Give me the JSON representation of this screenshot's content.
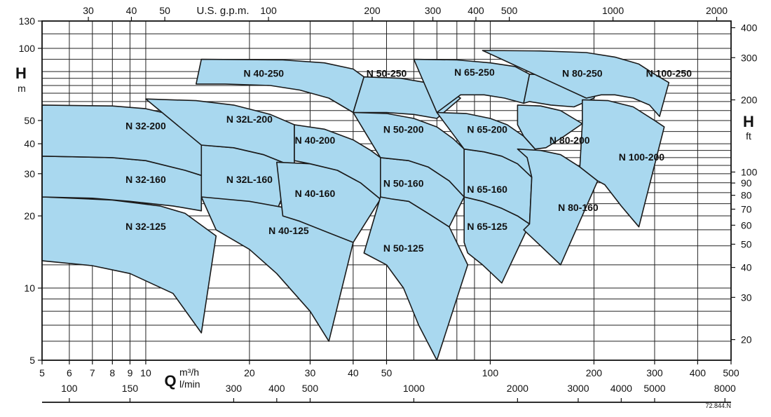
{
  "chart_data": {
    "type": "area",
    "title": "",
    "axes": {
      "x_primary": {
        "label": "Q",
        "unit": "m³/h",
        "scale": "log",
        "range": [
          5,
          500
        ],
        "ticks": [
          5,
          6,
          7,
          8,
          9,
          10,
          20,
          30,
          40,
          50,
          100,
          200,
          300,
          400,
          500
        ]
      },
      "x_secondary_lmin": {
        "unit": "l/min",
        "ticks": [
          100,
          150,
          300,
          400,
          500,
          1000,
          2000,
          3000,
          4000,
          5000,
          8000
        ]
      },
      "x_top_usgpm": {
        "unit": "U.S. g.p.m.",
        "ticks": [
          30,
          40,
          50,
          100,
          200,
          300,
          400,
          500,
          1000,
          2000
        ]
      },
      "y_primary": {
        "label": "H",
        "unit": "m",
        "scale": "log",
        "range": [
          5,
          130
        ],
        "ticks": [
          5,
          10,
          20,
          30,
          40,
          50,
          100,
          130
        ]
      },
      "y_secondary_ft": {
        "label": "H",
        "unit": "ft",
        "ticks": [
          20,
          30,
          40,
          50,
          60,
          70,
          80,
          90,
          100,
          200,
          300,
          400
        ]
      }
    },
    "grid": true,
    "series": [
      {
        "name": "N 32-125",
        "outline": [
          [
            5,
            24
          ],
          [
            8,
            23.3
          ],
          [
            11,
            22
          ],
          [
            13,
            20.5
          ],
          [
            16,
            16.5
          ],
          [
            14.5,
            6.5
          ],
          [
            12,
            9.5
          ],
          [
            9,
            11.5
          ],
          [
            7,
            12.4
          ],
          [
            5,
            13
          ]
        ]
      },
      {
        "name": "N 32-160",
        "outline": [
          [
            5,
            35.5
          ],
          [
            8,
            35
          ],
          [
            10,
            34
          ],
          [
            13,
            31
          ],
          [
            14.5,
            29.5
          ],
          [
            14.5,
            21
          ],
          [
            12,
            22
          ],
          [
            9,
            23
          ],
          [
            7,
            23.7
          ],
          [
            5,
            24
          ]
        ]
      },
      {
        "name": "N 32-200",
        "outline": [
          [
            5,
            58
          ],
          [
            8,
            57.5
          ],
          [
            10,
            56
          ],
          [
            12.5,
            52
          ],
          [
            14.5,
            47
          ],
          [
            14.5,
            29.5
          ],
          [
            13,
            31
          ],
          [
            10,
            34
          ],
          [
            8,
            35
          ],
          [
            5,
            35.5
          ]
        ]
      },
      {
        "name": "N 32L-160",
        "outline": [
          [
            14.5,
            39.5
          ],
          [
            18,
            38.5
          ],
          [
            22,
            36
          ],
          [
            27,
            32
          ],
          [
            24,
            21
          ],
          [
            20,
            22.5
          ],
          [
            16,
            23.5
          ],
          [
            14.5,
            24
          ]
        ]
      },
      {
        "name": "N 32L-200",
        "outline": [
          [
            10,
            61.5
          ],
          [
            14,
            60.5
          ],
          [
            18,
            58
          ],
          [
            23,
            53
          ],
          [
            27,
            48
          ],
          [
            27,
            32
          ],
          [
            22,
            36
          ],
          [
            18,
            38.5
          ],
          [
            14.5,
            39.5
          ]
        ]
      },
      {
        "name": "N 40-125",
        "outline": [
          [
            14.5,
            24
          ],
          [
            20,
            23
          ],
          [
            26,
            21.5
          ],
          [
            32,
            19.5
          ],
          [
            40,
            15.5
          ],
          [
            34,
            6
          ],
          [
            30,
            8
          ],
          [
            24,
            11.5
          ],
          [
            20,
            14.5
          ],
          [
            16,
            17.5
          ]
        ]
      },
      {
        "name": "N 40-160",
        "outline": [
          [
            24,
            33.5
          ],
          [
            30,
            33
          ],
          [
            36,
            31
          ],
          [
            42,
            27.5
          ],
          [
            48,
            23.5
          ],
          [
            40,
            15.5
          ],
          [
            34,
            17
          ],
          [
            28,
            19
          ],
          [
            25,
            20
          ]
        ]
      },
      {
        "name": "N 40-200",
        "outline": [
          [
            27,
            48
          ],
          [
            33,
            46
          ],
          [
            40,
            41.5
          ],
          [
            45,
            37.5
          ],
          [
            48,
            35
          ],
          [
            48,
            23.5
          ],
          [
            42,
            27.5
          ],
          [
            36,
            31
          ],
          [
            30,
            33
          ],
          [
            27,
            34
          ]
        ]
      },
      {
        "name": "N 40-250",
        "outline": [
          [
            14.5,
            90
          ],
          [
            25,
            89.5
          ],
          [
            33,
            87
          ],
          [
            40,
            82
          ],
          [
            43,
            76
          ],
          [
            40,
            54
          ],
          [
            34,
            62
          ],
          [
            28,
            67
          ],
          [
            23,
            70
          ],
          [
            17,
            71
          ],
          [
            14,
            71
          ]
        ]
      },
      {
        "name": "N 50-125",
        "outline": [
          [
            48,
            24
          ],
          [
            58,
            23
          ],
          [
            66,
            20.5
          ],
          [
            76,
            18
          ],
          [
            86,
            12.5
          ],
          [
            70,
            5
          ],
          [
            62,
            7
          ],
          [
            56,
            10
          ],
          [
            50,
            12.5
          ],
          [
            43,
            14
          ]
        ]
      },
      {
        "name": "N 50-160",
        "outline": [
          [
            48,
            35
          ],
          [
            58,
            34
          ],
          [
            66,
            32
          ],
          [
            76,
            28
          ],
          [
            84,
            24
          ],
          [
            76,
            18
          ],
          [
            66,
            20.5
          ],
          [
            58,
            23
          ],
          [
            52,
            23.5
          ],
          [
            48,
            24
          ]
        ]
      },
      {
        "name": "N 50-200",
        "outline": [
          [
            40,
            54
          ],
          [
            50,
            53.5
          ],
          [
            60,
            51
          ],
          [
            70,
            47
          ],
          [
            78,
            42
          ],
          [
            84,
            38
          ],
          [
            84,
            24
          ],
          [
            76,
            28
          ],
          [
            66,
            32
          ],
          [
            58,
            34
          ],
          [
            48,
            35
          ]
        ]
      },
      {
        "name": "N 50-250",
        "outline": [
          [
            43,
            76
          ],
          [
            55,
            75
          ],
          [
            65,
            72
          ],
          [
            75,
            67
          ],
          [
            82,
            62
          ],
          [
            70,
            51
          ],
          [
            60,
            53
          ],
          [
            50,
            54
          ],
          [
            40,
            54
          ]
        ]
      },
      {
        "name": "N 65-125",
        "outline": [
          [
            84,
            24
          ],
          [
            95,
            23
          ],
          [
            108,
            21.5
          ],
          [
            120,
            20
          ],
          [
            130,
            18.5
          ],
          [
            108,
            10.5
          ],
          [
            95,
            12.5
          ],
          [
            86,
            14
          ],
          [
            84,
            15.5
          ]
        ]
      },
      {
        "name": "N 65-160",
        "outline": [
          [
            84,
            38
          ],
          [
            96,
            37
          ],
          [
            108,
            35.5
          ],
          [
            120,
            33
          ],
          [
            132,
            29
          ],
          [
            130,
            18.5
          ],
          [
            120,
            20
          ],
          [
            108,
            21.5
          ],
          [
            95,
            23
          ],
          [
            84,
            24
          ]
        ]
      },
      {
        "name": "N 65-200",
        "outline": [
          [
            70,
            54
          ],
          [
            85,
            53.5
          ],
          [
            100,
            51
          ],
          [
            112,
            48
          ],
          [
            125,
            43
          ],
          [
            135,
            38
          ],
          [
            132,
            29
          ],
          [
            120,
            33
          ],
          [
            108,
            35.5
          ],
          [
            96,
            37
          ],
          [
            84,
            38
          ]
        ]
      },
      {
        "name": "N 65-250",
        "outline": [
          [
            60,
            90
          ],
          [
            80,
            89.5
          ],
          [
            100,
            87
          ],
          [
            118,
            84
          ],
          [
            130,
            78
          ],
          [
            125,
            59
          ],
          [
            110,
            62
          ],
          [
            96,
            64
          ],
          [
            82,
            64
          ],
          [
            70,
            54
          ]
        ]
      },
      {
        "name": "N 80-160",
        "outline": [
          [
            120,
            38
          ],
          [
            140,
            37.5
          ],
          [
            160,
            36
          ],
          [
            182,
            32
          ],
          [
            205,
            28
          ],
          [
            160,
            12.5
          ],
          [
            140,
            15
          ],
          [
            125,
            17.5
          ],
          [
            130,
            18.5
          ],
          [
            132,
            29
          ],
          [
            128,
            35
          ]
        ]
      },
      {
        "name": "N 80-200",
        "outline": [
          [
            120,
            58
          ],
          [
            140,
            57.5
          ],
          [
            160,
            55
          ],
          [
            185,
            48.5
          ],
          [
            160,
            42
          ],
          [
            145,
            38.5
          ],
          [
            135,
            38
          ],
          [
            125,
            43
          ],
          [
            120,
            48
          ]
        ]
      },
      {
        "name": "N 80-250",
        "outline": [
          [
            130,
            78
          ],
          [
            165,
            77
          ],
          [
            190,
            75
          ],
          [
            210,
            71
          ],
          [
            200,
            62
          ],
          [
            175,
            57
          ],
          [
            150,
            58
          ],
          [
            130,
            60
          ],
          [
            125,
            59
          ]
        ]
      },
      {
        "name": "N 100-200",
        "outline": [
          [
            185,
            61
          ],
          [
            220,
            60.5
          ],
          [
            260,
            57
          ],
          [
            300,
            50
          ],
          [
            320,
            47
          ],
          [
            270,
            18
          ],
          [
            240,
            22
          ],
          [
            215,
            27
          ],
          [
            205,
            28
          ],
          [
            182,
            32
          ],
          [
            185,
            48.5
          ]
        ]
      },
      {
        "name": "N 100-250",
        "outline": [
          [
            95,
            98
          ],
          [
            140,
            97.5
          ],
          [
            190,
            96
          ],
          [
            230,
            92
          ],
          [
            270,
            86
          ],
          [
            300,
            78
          ],
          [
            330,
            72
          ],
          [
            310,
            52
          ],
          [
            290,
            58
          ],
          [
            260,
            62
          ],
          [
            230,
            64
          ],
          [
            210,
            64
          ],
          [
            190,
            62
          ]
        ]
      }
    ],
    "labels": [
      {
        "text": "N 32-125",
        "q": 10,
        "h": 17.5
      },
      {
        "text": "N 32-160",
        "q": 10,
        "h": 27.5
      },
      {
        "text": "N 32-200",
        "q": 10,
        "h": 46
      },
      {
        "text": "N 32L-160",
        "q": 20,
        "h": 27.5
      },
      {
        "text": "N 32L-200",
        "q": 20,
        "h": 49
      },
      {
        "text": "N 40-125",
        "q": 26,
        "h": 16.8
      },
      {
        "text": "N 40-160",
        "q": 31,
        "h": 24
      },
      {
        "text": "N 40-200",
        "q": 31,
        "h": 40
      },
      {
        "text": "N 40-250",
        "q": 22,
        "h": 76
      },
      {
        "text": "N 50-125",
        "q": 56,
        "h": 14.2
      },
      {
        "text": "N 50-160",
        "q": 56,
        "h": 26.5
      },
      {
        "text": "N 50-200",
        "q": 56,
        "h": 44.5
      },
      {
        "text": "N 50-250",
        "q": 50,
        "h": 76
      },
      {
        "text": "N 65-125",
        "q": 98,
        "h": 17.5
      },
      {
        "text": "N 65-160",
        "q": 98,
        "h": 25
      },
      {
        "text": "N 65-200",
        "q": 98,
        "h": 44.5
      },
      {
        "text": "N 65-250",
        "q": 90,
        "h": 77
      },
      {
        "text": "N 80-160",
        "q": 180,
        "h": 21
      },
      {
        "text": "N 80-200",
        "q": 170,
        "h": 40
      },
      {
        "text": "N 80-250",
        "q": 185,
        "h": 76
      },
      {
        "text": "N 100-200",
        "q": 275,
        "h": 34
      },
      {
        "text": "N 100-250",
        "q": 330,
        "h": 76
      }
    ],
    "footer_code": "72.844.N",
    "fill_color": "#a9d8ef",
    "stroke_color": "#1a1a1a"
  }
}
